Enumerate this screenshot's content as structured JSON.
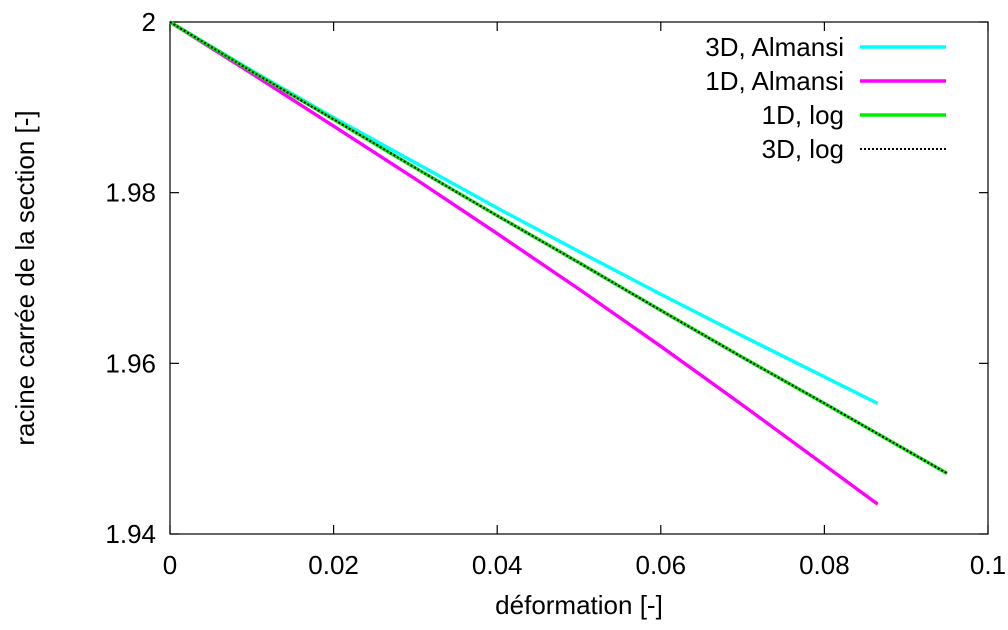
{
  "chart_data": {
    "type": "line",
    "title": "",
    "xlabel": "déformation [-]",
    "ylabel": "racine carrée de la section [-]",
    "xlim": [
      0,
      0.1
    ],
    "ylim": [
      1.94,
      2.0
    ],
    "xticks": [
      0,
      0.02,
      0.04,
      0.06,
      0.08,
      0.1
    ],
    "xtick_labels": [
      "0",
      "0.02",
      "0.04",
      "0.06",
      "0.08",
      "0.1"
    ],
    "yticks": [
      1.94,
      1.96,
      1.98,
      2.0
    ],
    "ytick_labels": [
      "1.94",
      "1.96",
      "1.98",
      "2"
    ],
    "grid": false,
    "legend_position": "top-right",
    "series": [
      {
        "name": "3D, Almansi",
        "color": "#00ffff",
        "style": "solid",
        "x": [
          0,
          0.01,
          0.02,
          0.03,
          0.04,
          0.05,
          0.06,
          0.07,
          0.0865
        ],
        "y": [
          2.0,
          1.9943,
          1.9888,
          1.9835,
          1.9782,
          1.9731,
          1.9681,
          1.9632,
          1.9553
        ]
      },
      {
        "name": "1D, Almansi",
        "color": "#ff00ff",
        "style": "solid",
        "x": [
          0,
          0.01,
          0.02,
          0.03,
          0.04,
          0.05,
          0.06,
          0.07,
          0.0865
        ],
        "y": [
          2.0,
          1.99395,
          1.9878,
          1.9816,
          1.9752,
          1.9687,
          1.962,
          1.9551,
          1.9435
        ]
      },
      {
        "name": "1D, log",
        "color": "#00ee00",
        "style": "solid",
        "x": [
          0,
          0.01,
          0.02,
          0.03,
          0.04,
          0.05,
          0.06,
          0.07,
          0.08,
          0.095
        ],
        "y": [
          2.0,
          1.9942,
          1.9886,
          1.9829,
          1.9773,
          1.9718,
          1.9662,
          1.9607,
          1.9553,
          1.9471
        ]
      },
      {
        "name": "3D, log",
        "color": "#000000",
        "style": "dotted",
        "x": [
          0,
          0.01,
          0.02,
          0.03,
          0.04,
          0.05,
          0.06,
          0.07,
          0.08,
          0.095
        ],
        "y": [
          2.0,
          1.9942,
          1.9886,
          1.9829,
          1.9773,
          1.9718,
          1.9662,
          1.9607,
          1.9553,
          1.9471
        ]
      }
    ]
  }
}
